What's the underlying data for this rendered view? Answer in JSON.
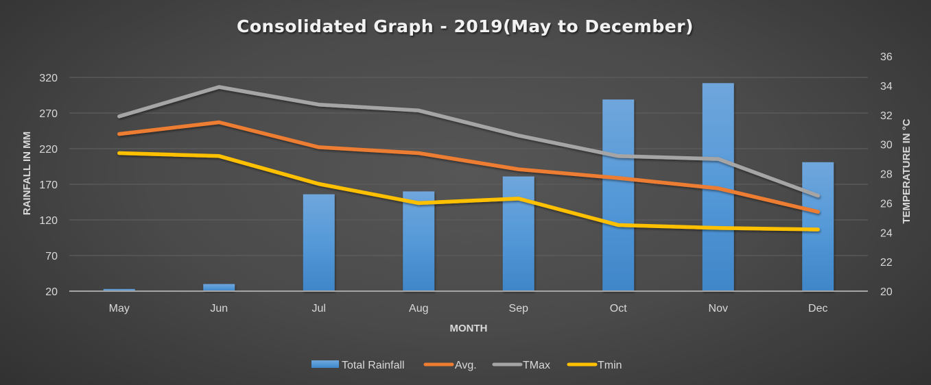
{
  "chart_data": {
    "type": "bar+line",
    "title": "Consolidated Graph - 2019(May to December)",
    "xlabel": "MONTH",
    "ylabel": "RAINFALL IN MM",
    "y2label": "TEMPERATURE IN °C",
    "categories": [
      "May",
      "Jun",
      "Jul",
      "Aug",
      "Sep",
      "Oct",
      "Nov",
      "Dec"
    ],
    "ylim": [
      20,
      320
    ],
    "yticks": [
      20,
      70,
      120,
      170,
      220,
      270,
      320
    ],
    "y2lim": [
      20,
      36
    ],
    "y2ticks": [
      20,
      22,
      24,
      26,
      28,
      30,
      32,
      34,
      36
    ],
    "grid": true,
    "legend_position": "bottom",
    "series": [
      {
        "name": "Total Rainfall",
        "type": "bar",
        "axis": "left",
        "color": "#5b9bd5",
        "values": [
          23,
          30,
          156,
          160,
          181,
          289,
          312,
          201
        ]
      },
      {
        "name": "Avg.",
        "type": "line",
        "axis": "right",
        "color": "#ed7d31",
        "values": [
          30.7,
          31.5,
          29.8,
          29.4,
          28.3,
          27.7,
          27.0,
          25.4
        ]
      },
      {
        "name": "TMax",
        "type": "line",
        "axis": "right",
        "color": "#a5a5a5",
        "values": [
          31.9,
          33.9,
          32.7,
          32.3,
          30.6,
          29.2,
          29.0,
          26.5
        ]
      },
      {
        "name": "Tmin",
        "type": "line",
        "axis": "right",
        "color": "#ffc000",
        "values": [
          29.4,
          29.2,
          27.3,
          26.0,
          26.3,
          24.5,
          24.3,
          24.2
        ]
      }
    ]
  }
}
